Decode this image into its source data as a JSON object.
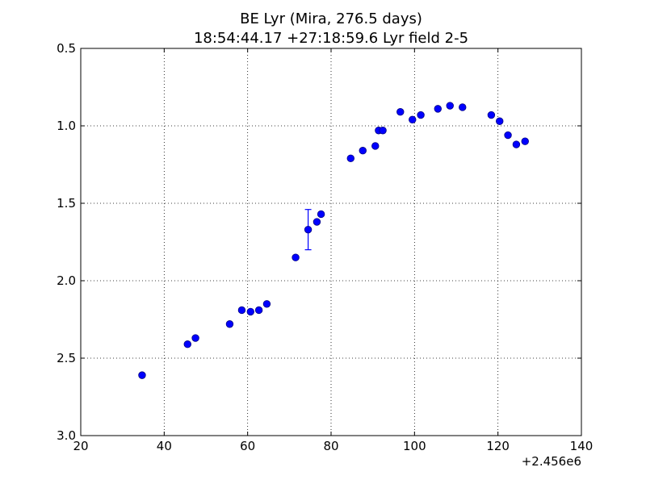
{
  "chart_data": {
    "type": "scatter",
    "title": "BE Lyr (Mira, 276.5 days)",
    "subtitle": "18:54:44.17 +27:18:59.6 Lyr field 2-5",
    "xlabel": "",
    "ylabel": "",
    "x_offset_label": "+2.456e6",
    "xlim": [
      20,
      140
    ],
    "ylim": [
      3.0,
      0.5
    ],
    "y_inverted": true,
    "grid": true,
    "grid_style": "dotted",
    "x_ticks": [
      "20",
      "40",
      "60",
      "80",
      "100",
      "120",
      "140"
    ],
    "y_ticks": [
      "0.5",
      "1.0",
      "1.5",
      "2.0",
      "2.5",
      "3.0"
    ],
    "marker_color": "#0000ff",
    "marker_edge_color": "#000080",
    "series": [
      {
        "points": [
          {
            "x": 34.7,
            "y": 2.61
          },
          {
            "x": 45.6,
            "y": 2.41
          },
          {
            "x": 47.5,
            "y": 2.37
          },
          {
            "x": 55.7,
            "y": 2.28
          },
          {
            "x": 58.6,
            "y": 2.19
          },
          {
            "x": 60.7,
            "y": 2.2
          },
          {
            "x": 62.7,
            "y": 2.19
          },
          {
            "x": 64.6,
            "y": 2.15
          },
          {
            "x": 71.5,
            "y": 1.85
          },
          {
            "x": 74.5,
            "y": 1.67,
            "err": 0.13
          },
          {
            "x": 76.6,
            "y": 1.62
          },
          {
            "x": 77.6,
            "y": 1.57
          },
          {
            "x": 84.7,
            "y": 1.21
          },
          {
            "x": 87.6,
            "y": 1.16
          },
          {
            "x": 90.6,
            "y": 1.13
          },
          {
            "x": 91.4,
            "y": 1.03
          },
          {
            "x": 92.4,
            "y": 1.03
          },
          {
            "x": 96.6,
            "y": 0.91
          },
          {
            "x": 99.5,
            "y": 0.96
          },
          {
            "x": 101.5,
            "y": 0.93
          },
          {
            "x": 105.6,
            "y": 0.89
          },
          {
            "x": 108.5,
            "y": 0.87
          },
          {
            "x": 111.5,
            "y": 0.88
          },
          {
            "x": 118.4,
            "y": 0.93
          },
          {
            "x": 120.4,
            "y": 0.97
          },
          {
            "x": 122.4,
            "y": 1.06
          },
          {
            "x": 124.4,
            "y": 1.12
          },
          {
            "x": 126.5,
            "y": 1.1
          }
        ]
      }
    ]
  }
}
